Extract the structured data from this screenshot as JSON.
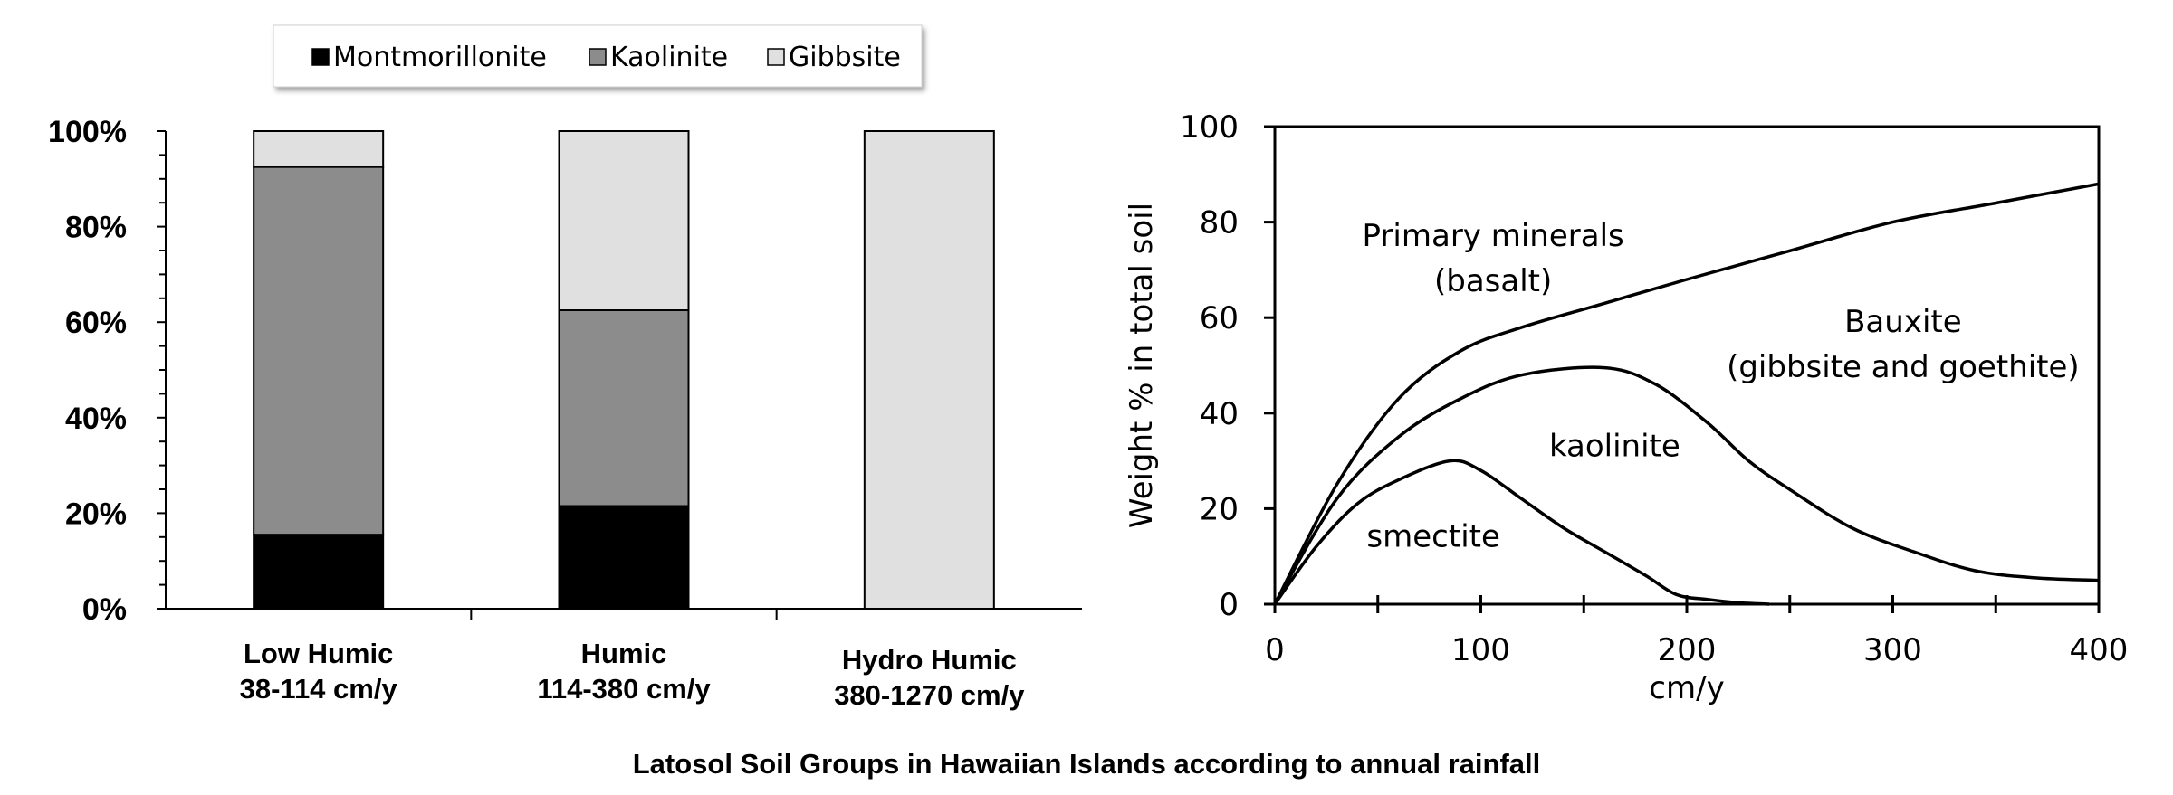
{
  "caption": "Latosol Soil Groups in Hawaiian Islands according to annual rainfall",
  "chart_data": [
    {
      "type": "bar",
      "stacked": true,
      "title": "",
      "xlabel": "",
      "ylabel": "",
      "ylim": [
        0,
        100
      ],
      "y_tick_values": [
        0,
        20,
        40,
        60,
        80,
        100
      ],
      "y_tick_labels": [
        "0%",
        "20%",
        "40%",
        "60%",
        "80%",
        "100%"
      ],
      "y_minor_step": 5,
      "legend_position": "top",
      "categories": [
        {
          "name": "Low Humic",
          "range": "38-114 cm/y"
        },
        {
          "name": "Humic",
          "range": "114-380 cm/y"
        },
        {
          "name": "Hydro Humic",
          "range": "380-1270 cm/y"
        }
      ],
      "series": [
        {
          "name": "Montmorillonite",
          "color": "#000000",
          "values": [
            15.5,
            21.5,
            0
          ]
        },
        {
          "name": "Kaolinite",
          "color": "#8c8c8c",
          "values": [
            77,
            41,
            0
          ]
        },
        {
          "name": "Gibbsite",
          "color": "#e0e0e0",
          "values": [
            7.5,
            37.5,
            100
          ]
        }
      ]
    },
    {
      "type": "line",
      "title": "",
      "xlabel": "cm/y",
      "ylabel": "Weight % in total soil",
      "xlim": [
        0,
        400
      ],
      "ylim": [
        0,
        100
      ],
      "x_ticks": [
        0,
        100,
        200,
        300,
        400
      ],
      "x_minor_ticks": [
        50,
        150,
        250,
        350
      ],
      "y_ticks": [
        0,
        20,
        40,
        60,
        80,
        100
      ],
      "grid": false,
      "series": [
        {
          "points": [
            [
              0,
              0
            ],
            [
              30,
              25
            ],
            [
              60,
              43
            ],
            [
              90,
              53
            ],
            [
              120,
              58
            ],
            [
              160,
              63
            ],
            [
              200,
              68
            ],
            [
              250,
              74
            ],
            [
              300,
              80
            ],
            [
              350,
              84
            ],
            [
              400,
              88
            ]
          ]
        },
        {
          "points": [
            [
              0,
              0
            ],
            [
              30,
              22
            ],
            [
              60,
              35
            ],
            [
              90,
              43
            ],
            [
              120,
              48
            ],
            [
              160,
              49.5
            ],
            [
              185,
              46
            ],
            [
              210,
              38
            ],
            [
              230,
              30
            ],
            [
              250,
              24
            ],
            [
              280,
              16
            ],
            [
              310,
              11
            ],
            [
              340,
              7
            ],
            [
              370,
              5.5
            ],
            [
              400,
              5
            ]
          ]
        },
        {
          "points": [
            [
              0,
              0
            ],
            [
              20,
              12
            ],
            [
              40,
              21
            ],
            [
              60,
              26
            ],
            [
              85,
              30
            ],
            [
              100,
              28
            ],
            [
              120,
              22
            ],
            [
              140,
              16
            ],
            [
              160,
              11
            ],
            [
              180,
              6
            ],
            [
              195,
              2
            ],
            [
              210,
              1
            ],
            [
              225,
              0.3
            ],
            [
              240,
              0
            ]
          ]
        }
      ],
      "annotations": [
        {
          "lines": [
            "Primary minerals",
            "(basalt)"
          ],
          "x": 106,
          "y": 75
        },
        {
          "lines": [
            "Bauxite",
            "(gibbsite and goethite)"
          ],
          "x": 305,
          "y": 57
        },
        {
          "lines": [
            "kaolinite"
          ],
          "x": 165,
          "y": 31
        },
        {
          "lines": [
            "smectite"
          ],
          "x": 77,
          "y": 12
        }
      ]
    }
  ]
}
